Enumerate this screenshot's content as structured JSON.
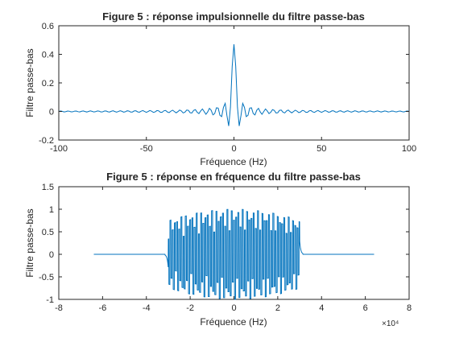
{
  "chart_data": [
    {
      "type": "line",
      "title": "Figure 5 : réponse impulsionnelle du filtre passe-bas",
      "xlabel": "Fréquence (Hz)",
      "ylabel": "Filtre passe-bas",
      "xlim": [
        -100,
        100
      ],
      "ylim": [
        -0.2,
        0.6
      ],
      "xticks": [
        -100,
        -50,
        0,
        50,
        100
      ],
      "xtick_labels": [
        "-100",
        "-50",
        "0",
        "50",
        "100"
      ],
      "yticks": [
        -0.2,
        0,
        0.2,
        0.4,
        0.6
      ],
      "ytick_labels": [
        "-0.2",
        "0",
        "0.2",
        "0.4",
        "0.6"
      ],
      "grid": false,
      "color": "#0072bd",
      "series": [
        {
          "description": "sinc-shaped impulse response sampled every 1 Hz from -100 to 100; central peak ~0.47 at x=0, side-lobe minima ~-0.08 near x=±3, oscillation decaying to ~±0.01 at the edges",
          "x_range": [
            -100,
            100
          ],
          "peak": 0.47,
          "first_min": -0.08
        }
      ]
    },
    {
      "type": "line",
      "title": "Figure 5 : réponse en fréquence du filtre passe-bas",
      "xlabel": "Fréquence (Hz)",
      "ylabel": "Filtre passe-bas",
      "xlim": [
        -80000,
        80000
      ],
      "ylim": [
        -1,
        1.5
      ],
      "xticks": [
        -80000,
        -60000,
        -40000,
        -20000,
        0,
        20000,
        40000,
        60000,
        80000
      ],
      "xtick_labels": [
        "-8",
        "-6",
        "-4",
        "-2",
        "0",
        "2",
        "4",
        "6",
        "8"
      ],
      "x_exponent_label": "×10⁴",
      "yticks": [
        -1,
        -0.5,
        0,
        0.5,
        1,
        1.5
      ],
      "ytick_labels": [
        "-1",
        "-0.5",
        "0",
        "0.5",
        "1",
        "1.5"
      ],
      "grid": false,
      "color": "#0072bd",
      "series": [
        {
          "description": "oscillating frequency response: flat at 0 from -64000 to ~-31000 and ~31000 to 64000 Hz; dense oscillation with envelope ~±1 between about -30000 and 30000 Hz",
          "x_range": [
            -64000,
            64000
          ],
          "passband": [
            -30000,
            30000
          ],
          "envelope_max": 1.0,
          "envelope_min": -1.0
        }
      ]
    }
  ]
}
